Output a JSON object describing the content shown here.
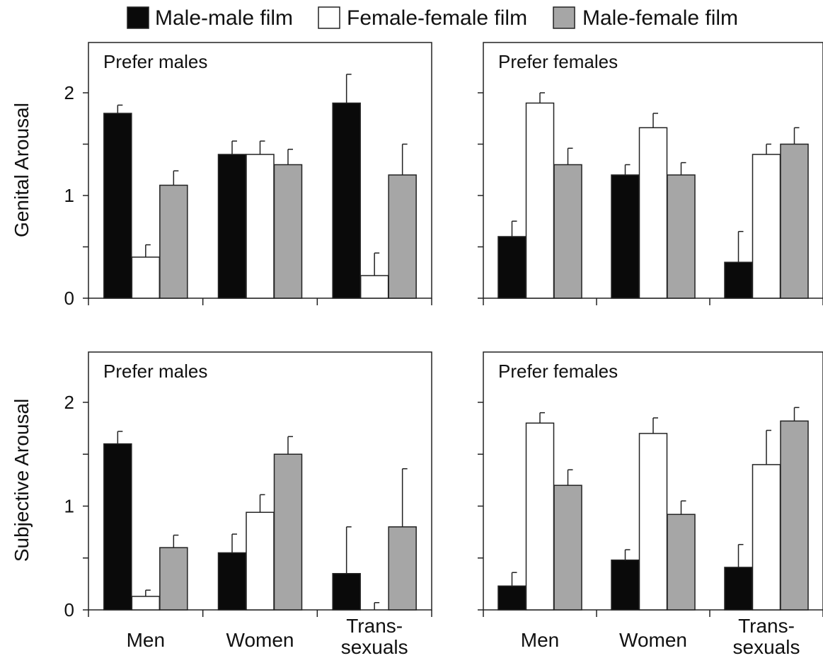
{
  "chart_data": [
    {
      "type": "bar",
      "panel": "top-left",
      "title": "Prefer males",
      "ylabel": "Genital Arousal",
      "ylim": [
        0,
        2.5
      ],
      "yticks": [
        0,
        1,
        2
      ],
      "categories": [
        "Men",
        "Women",
        "Trans- sexuals"
      ],
      "series": [
        {
          "name": "Male-male film",
          "values": [
            1.8,
            1.4,
            1.9
          ],
          "errors": [
            0.08,
            0.13,
            0.28
          ]
        },
        {
          "name": "Female-female film",
          "values": [
            0.4,
            1.4,
            0.22
          ],
          "errors": [
            0.12,
            0.13,
            0.22
          ]
        },
        {
          "name": "Male-female film",
          "values": [
            1.1,
            1.3,
            1.2
          ],
          "errors": [
            0.14,
            0.15,
            0.3
          ]
        }
      ]
    },
    {
      "type": "bar",
      "panel": "top-right",
      "title": "Prefer females",
      "ylabel": "",
      "ylim": [
        0,
        2.5
      ],
      "yticks": [
        0,
        1,
        2
      ],
      "categories": [
        "Men",
        "Women",
        "Trans- sexuals"
      ],
      "series": [
        {
          "name": "Male-male film",
          "values": [
            0.6,
            1.2,
            0.35
          ],
          "errors": [
            0.15,
            0.1,
            0.3
          ]
        },
        {
          "name": "Female-female film",
          "values": [
            1.9,
            1.66,
            1.4
          ],
          "errors": [
            0.1,
            0.14,
            0.1
          ]
        },
        {
          "name": "Male-female film",
          "values": [
            1.3,
            1.2,
            1.5
          ],
          "errors": [
            0.16,
            0.12,
            0.16
          ]
        }
      ]
    },
    {
      "type": "bar",
      "panel": "bottom-left",
      "title": "Prefer males",
      "ylabel": "Subjective Arousal",
      "ylim": [
        0,
        2.5
      ],
      "yticks": [
        0,
        1,
        2
      ],
      "categories": [
        "Men",
        "Women",
        "Trans- sexuals"
      ],
      "series": [
        {
          "name": "Male-male film",
          "values": [
            1.6,
            0.55,
            0.35
          ],
          "errors": [
            0.12,
            0.18,
            0.45
          ]
        },
        {
          "name": "Female-female film",
          "values": [
            0.13,
            0.94,
            0.0
          ],
          "errors": [
            0.06,
            0.17,
            0.07
          ]
        },
        {
          "name": "Male-female film",
          "values": [
            0.6,
            1.5,
            0.8
          ],
          "errors": [
            0.12,
            0.17,
            0.56
          ]
        }
      ]
    },
    {
      "type": "bar",
      "panel": "bottom-right",
      "title": "Prefer females",
      "ylabel": "",
      "ylim": [
        0,
        2.5
      ],
      "yticks": [
        0,
        1,
        2
      ],
      "categories": [
        "Men",
        "Women",
        "Trans- sexuals"
      ],
      "series": [
        {
          "name": "Male-male film",
          "values": [
            0.23,
            0.48,
            0.41
          ],
          "errors": [
            0.13,
            0.1,
            0.22
          ]
        },
        {
          "name": "Female-female film",
          "values": [
            1.8,
            1.7,
            1.4
          ],
          "errors": [
            0.1,
            0.15,
            0.33
          ]
        },
        {
          "name": "Male-female film",
          "values": [
            1.2,
            0.92,
            1.82
          ],
          "errors": [
            0.15,
            0.13,
            0.13
          ]
        }
      ]
    }
  ],
  "legend": {
    "placement": "top-center",
    "items": [
      {
        "label": "Male-male film",
        "color": "#0a0a0a"
      },
      {
        "label": "Female-female film",
        "color": "#ffffff"
      },
      {
        "label": "Male-female film",
        "color": "#a6a6a6"
      }
    ]
  },
  "y_axis_labels": [
    "Genital Arousal",
    "Subjective Arousal"
  ],
  "x_axis": {
    "category_lines": [
      [
        "Men"
      ],
      [
        "Women"
      ],
      [
        "Trans-",
        "sexuals"
      ]
    ]
  },
  "series_colors": [
    "#0a0a0a",
    "#ffffff",
    "#a6a6a6"
  ]
}
